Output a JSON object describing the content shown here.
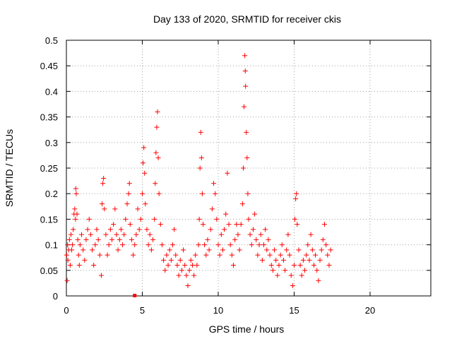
{
  "chart_data": {
    "type": "scatter",
    "title": "Day 133 of 2020, SRMTID for receiver ckis",
    "xlabel": "GPS time / hours",
    "ylabel": "SRMTID / TECUs",
    "xlim": [
      0,
      24
    ],
    "ylim": [
      0,
      0.5
    ],
    "xticks": [
      0,
      5,
      10,
      15,
      20
    ],
    "xtick_labels": [
      "0",
      "5",
      "10",
      "15",
      "20"
    ],
    "yticks": [
      0,
      0.05,
      0.1,
      0.15,
      0.2,
      0.25,
      0.3,
      0.35,
      0.4,
      0.45,
      0.5
    ],
    "ytick_labels": [
      "0",
      "0.05",
      "0.1",
      "0.15",
      "0.2",
      "0.25",
      "0.3",
      "0.35",
      "0.4",
      "0.45",
      "0.5"
    ],
    "grid": true,
    "marker": "plus",
    "color": "#ff0000",
    "series": [
      {
        "values": [
          [
            0.02,
            0.08
          ],
          [
            0.05,
            0.03
          ],
          [
            0.08,
            0.1
          ],
          [
            0.1,
            0.07
          ],
          [
            0.15,
            0.09
          ],
          [
            0.2,
            0.11
          ],
          [
            0.25,
            0.06
          ],
          [
            0.3,
            0.12
          ],
          [
            0.35,
            0.09
          ],
          [
            0.4,
            0.1
          ],
          [
            0.45,
            0.13
          ],
          [
            0.5,
            0.16
          ],
          [
            0.55,
            0.17
          ],
          [
            0.6,
            0.15
          ],
          [
            0.62,
            0.21
          ],
          [
            0.65,
            0.2
          ],
          [
            0.7,
            0.16
          ],
          [
            0.75,
            0.11
          ],
          [
            0.8,
            0.08
          ],
          [
            0.85,
            0.06
          ],
          [
            0.9,
            0.1
          ],
          [
            1.0,
            0.12
          ],
          [
            1.1,
            0.09
          ],
          [
            1.2,
            0.07
          ],
          [
            1.3,
            0.11
          ],
          [
            1.4,
            0.13
          ],
          [
            1.5,
            0.15
          ],
          [
            1.6,
            0.12
          ],
          [
            1.7,
            0.09
          ],
          [
            1.8,
            0.06
          ],
          [
            1.9,
            0.1
          ],
          [
            2.0,
            0.13
          ],
          [
            2.1,
            0.11
          ],
          [
            2.2,
            0.08
          ],
          [
            2.3,
            0.04
          ],
          [
            2.35,
            0.18
          ],
          [
            2.4,
            0.22
          ],
          [
            2.45,
            0.23
          ],
          [
            2.5,
            0.17
          ],
          [
            2.6,
            0.12
          ],
          [
            2.7,
            0.08
          ],
          [
            2.8,
            0.1
          ],
          [
            2.9,
            0.13
          ],
          [
            3.0,
            0.11
          ],
          [
            3.1,
            0.14
          ],
          [
            3.2,
            0.17
          ],
          [
            3.3,
            0.12
          ],
          [
            3.4,
            0.09
          ],
          [
            3.5,
            0.11
          ],
          [
            3.6,
            0.13
          ],
          [
            3.7,
            0.1
          ],
          [
            3.8,
            0.12
          ],
          [
            3.9,
            0.15
          ],
          [
            4.0,
            0.18
          ],
          [
            4.1,
            0.2
          ],
          [
            4.15,
            0.22
          ],
          [
            4.2,
            0.14
          ],
          [
            4.3,
            0.11
          ],
          [
            4.4,
            0.08
          ],
          [
            4.5,
            0.1
          ],
          [
            4.6,
            0.12
          ],
          [
            4.7,
            0.17
          ],
          [
            4.8,
            0.13
          ],
          [
            4.9,
            0.15
          ],
          [
            5.0,
            0.2
          ],
          [
            5.05,
            0.26
          ],
          [
            5.1,
            0.29
          ],
          [
            5.15,
            0.24
          ],
          [
            5.2,
            0.18
          ],
          [
            5.3,
            0.13
          ],
          [
            5.4,
            0.1
          ],
          [
            5.5,
            0.12
          ],
          [
            5.6,
            0.09
          ],
          [
            5.7,
            0.11
          ],
          [
            5.8,
            0.15
          ],
          [
            5.85,
            0.22
          ],
          [
            5.9,
            0.28
          ],
          [
            5.95,
            0.33
          ],
          [
            6.0,
            0.36
          ],
          [
            6.05,
            0.27
          ],
          [
            6.1,
            0.2
          ],
          [
            6.2,
            0.14
          ],
          [
            6.3,
            0.1
          ],
          [
            6.4,
            0.07
          ],
          [
            6.5,
            0.05
          ],
          [
            6.6,
            0.08
          ],
          [
            6.7,
            0.06
          ],
          [
            6.8,
            0.09
          ],
          [
            6.9,
            0.07
          ],
          [
            7.0,
            0.1
          ],
          [
            7.1,
            0.13
          ],
          [
            7.2,
            0.08
          ],
          [
            7.3,
            0.06
          ],
          [
            7.4,
            0.04
          ],
          [
            7.5,
            0.07
          ],
          [
            7.6,
            0.05
          ],
          [
            7.7,
            0.09
          ],
          [
            7.8,
            0.06
          ],
          [
            7.9,
            0.04
          ],
          [
            8.0,
            0.02
          ],
          [
            8.1,
            0.05
          ],
          [
            8.2,
            0.07
          ],
          [
            8.3,
            0.06
          ],
          [
            8.4,
            0.04
          ],
          [
            8.5,
            0.08
          ],
          [
            8.6,
            0.06
          ],
          [
            8.7,
            0.1
          ],
          [
            8.75,
            0.15
          ],
          [
            8.8,
            0.25
          ],
          [
            8.85,
            0.32
          ],
          [
            8.9,
            0.27
          ],
          [
            8.95,
            0.2
          ],
          [
            9.0,
            0.14
          ],
          [
            9.1,
            0.1
          ],
          [
            9.2,
            0.08
          ],
          [
            9.3,
            0.11
          ],
          [
            9.4,
            0.09
          ],
          [
            9.5,
            0.13
          ],
          [
            9.6,
            0.17
          ],
          [
            9.7,
            0.22
          ],
          [
            9.8,
            0.2
          ],
          [
            9.9,
            0.15
          ],
          [
            10.0,
            0.1
          ],
          [
            10.1,
            0.08
          ],
          [
            10.2,
            0.12
          ],
          [
            10.3,
            0.09
          ],
          [
            10.4,
            0.13
          ],
          [
            10.5,
            0.16
          ],
          [
            10.6,
            0.24
          ],
          [
            10.7,
            0.14
          ],
          [
            10.8,
            0.1
          ],
          [
            10.9,
            0.08
          ],
          [
            11.0,
            0.06
          ],
          [
            11.1,
            0.11
          ],
          [
            11.2,
            0.14
          ],
          [
            11.3,
            0.12
          ],
          [
            11.4,
            0.09
          ],
          [
            11.5,
            0.14
          ],
          [
            11.6,
            0.18
          ],
          [
            11.65,
            0.25
          ],
          [
            11.7,
            0.37
          ],
          [
            11.75,
            0.47
          ],
          [
            11.78,
            0.44
          ],
          [
            11.8,
            0.41
          ],
          [
            11.85,
            0.32
          ],
          [
            11.9,
            0.27
          ],
          [
            11.95,
            0.2
          ],
          [
            12.0,
            0.15
          ],
          [
            12.1,
            0.12
          ],
          [
            12.2,
            0.1
          ],
          [
            12.3,
            0.13
          ],
          [
            12.4,
            0.16
          ],
          [
            12.5,
            0.11
          ],
          [
            12.6,
            0.08
          ],
          [
            12.7,
            0.1
          ],
          [
            12.8,
            0.12
          ],
          [
            12.9,
            0.07
          ],
          [
            13.0,
            0.1
          ],
          [
            13.1,
            0.13
          ],
          [
            13.2,
            0.09
          ],
          [
            13.3,
            0.11
          ],
          [
            13.4,
            0.08
          ],
          [
            13.5,
            0.06
          ],
          [
            13.6,
            0.05
          ],
          [
            13.7,
            0.09
          ],
          [
            13.8,
            0.07
          ],
          [
            13.9,
            0.04
          ],
          [
            14.0,
            0.06
          ],
          [
            14.1,
            0.08
          ],
          [
            14.2,
            0.1
          ],
          [
            14.3,
            0.07
          ],
          [
            14.4,
            0.05
          ],
          [
            14.5,
            0.09
          ],
          [
            14.6,
            0.12
          ],
          [
            14.7,
            0.08
          ],
          [
            14.8,
            0.04
          ],
          [
            14.9,
            0.02
          ],
          [
            15.0,
            0.06
          ],
          [
            15.05,
            0.15
          ],
          [
            15.1,
            0.19
          ],
          [
            15.15,
            0.2
          ],
          [
            15.2,
            0.14
          ],
          [
            15.3,
            0.09
          ],
          [
            15.4,
            0.06
          ],
          [
            15.5,
            0.04
          ],
          [
            15.6,
            0.07
          ],
          [
            15.7,
            0.05
          ],
          [
            15.8,
            0.08
          ],
          [
            15.9,
            0.1
          ],
          [
            16.0,
            0.07
          ],
          [
            16.1,
            0.12
          ],
          [
            16.2,
            0.09
          ],
          [
            16.3,
            0.06
          ],
          [
            16.4,
            0.08
          ],
          [
            16.5,
            0.05
          ],
          [
            16.6,
            0.03
          ],
          [
            16.7,
            0.07
          ],
          [
            16.8,
            0.09
          ],
          [
            16.9,
            0.11
          ],
          [
            17.0,
            0.14
          ],
          [
            17.1,
            0.1
          ],
          [
            17.2,
            0.08
          ],
          [
            17.3,
            0.06
          ],
          [
            17.4,
            0.09
          ]
        ]
      },
      {
        "marker": "square",
        "values": [
          [
            4.5,
            0.0
          ]
        ]
      }
    ]
  }
}
